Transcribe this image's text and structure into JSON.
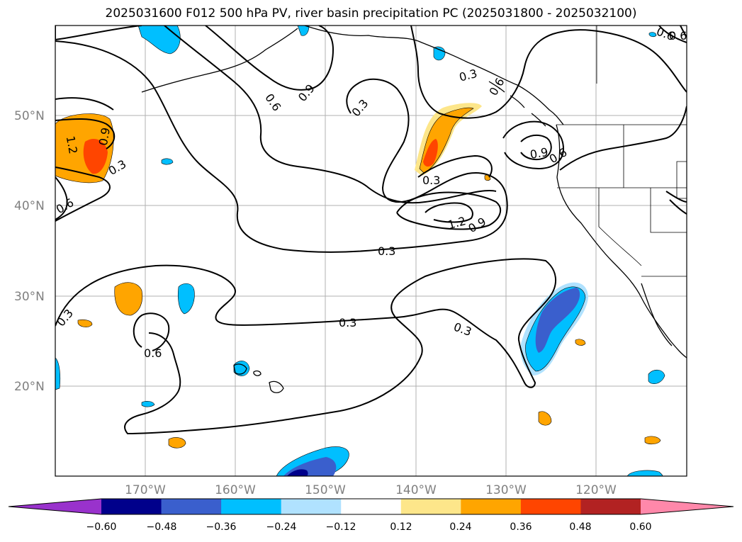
{
  "title": "2025031600 F012 500 hPa PV, river basin precipitation PC (2025031800 - 2025032100)",
  "lat_labels": [
    "50°N",
    "40°N",
    "30°N",
    "20°N"
  ],
  "lon_labels": [
    "170°W",
    "160°W",
    "150°W",
    "140°W",
    "130°W",
    "120°W"
  ],
  "contour_labels": [
    "1.2",
    "0.9",
    "0.3",
    "0.6",
    "0.6",
    "0.9",
    "0.3",
    "0.6",
    "0.6",
    "0.3",
    "0.9",
    "0.6",
    "0.3",
    "1.2",
    "0.9",
    "0.3",
    "0.3",
    "0.6",
    "0.3",
    "0.3",
    "0.6"
  ],
  "colorbar": {
    "colors": [
      "#9932cc",
      "#00008b",
      "#3a5fcd",
      "#00bfff",
      "#b0e2ff",
      "#ffffff",
      "#fde68a",
      "#ffa500",
      "#ff4500",
      "#b22222",
      "#ff88aa"
    ],
    "ticks": [
      "−0.60",
      "−0.48",
      "−0.36",
      "−0.24",
      "−0.12",
      "0.12",
      "0.24",
      "0.36",
      "0.48",
      "0.60"
    ]
  }
}
